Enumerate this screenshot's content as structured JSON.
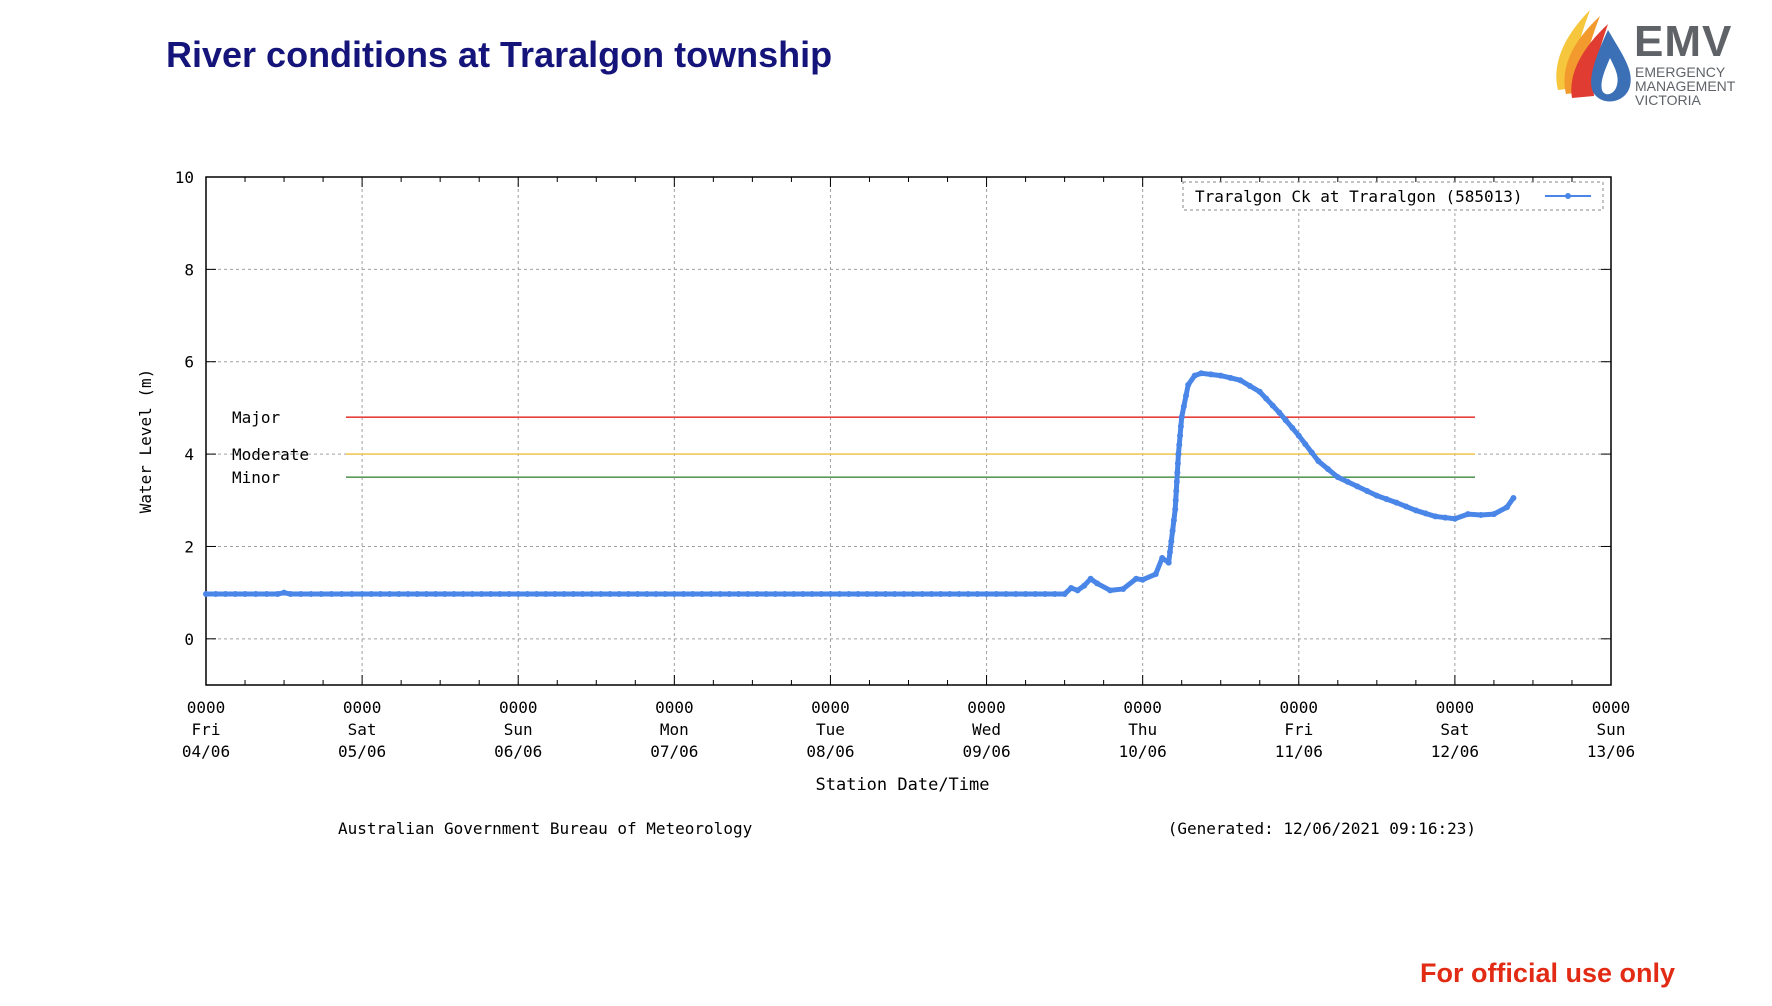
{
  "slide": {
    "title": "River conditions at Traralgon township",
    "footer": "For official use only"
  },
  "logo": {
    "wordmark": "EMV",
    "lines": [
      "EMERGENCY",
      "MANAGEMENT",
      "VICTORIA"
    ],
    "colors": {
      "drop": "#3b6fb6",
      "red": "#e03c31",
      "orange": "#f29a2e",
      "yellow": "#f6c63c",
      "text": "#5f6368"
    }
  },
  "chart_data": {
    "type": "line",
    "title": "",
    "xlabel": "Station Date/Time",
    "ylabel": "Water Level (m)",
    "ylim": [
      -1,
      10
    ],
    "yticks": [
      0,
      2,
      4,
      6,
      8,
      10
    ],
    "xlim": [
      "2021-06-04 00:00",
      "2021-06-13 00:00"
    ],
    "xticks": [
      {
        "time": "0000",
        "day": "Fri",
        "date": "04/06"
      },
      {
        "time": "0000",
        "day": "Sat",
        "date": "05/06"
      },
      {
        "time": "0000",
        "day": "Sun",
        "date": "06/06"
      },
      {
        "time": "0000",
        "day": "Mon",
        "date": "07/06"
      },
      {
        "time": "0000",
        "day": "Tue",
        "date": "08/06"
      },
      {
        "time": "0000",
        "day": "Wed",
        "date": "09/06"
      },
      {
        "time": "0000",
        "day": "Thu",
        "date": "10/06"
      },
      {
        "time": "0000",
        "day": "Fri",
        "date": "11/06"
      },
      {
        "time": "0000",
        "day": "Sat",
        "date": "12/06"
      },
      {
        "time": "0000",
        "day": "Sun",
        "date": "13/06"
      }
    ],
    "grid": true,
    "legend_position": "top-right",
    "thresholds": [
      {
        "name": "Major",
        "value": 4.8,
        "color": "#e8413c"
      },
      {
        "name": "Moderate",
        "value": 4.0,
        "color": "#f0c85a"
      },
      {
        "name": "Minor",
        "value": 3.5,
        "color": "#5a9a5a"
      }
    ],
    "series": [
      {
        "name": "Traralgon Ck at Traralgon (585013)",
        "color": "#4a86e8",
        "points": [
          [
            "2021-06-04 00:00",
            0.97
          ],
          [
            "2021-06-04 06:00",
            0.97
          ],
          [
            "2021-06-04 11:00",
            0.97
          ],
          [
            "2021-06-04 12:00",
            1.0
          ],
          [
            "2021-06-04 13:00",
            0.97
          ],
          [
            "2021-06-05 00:00",
            0.97
          ],
          [
            "2021-06-06 00:00",
            0.97
          ],
          [
            "2021-06-07 00:00",
            0.97
          ],
          [
            "2021-06-08 00:00",
            0.97
          ],
          [
            "2021-06-09 00:00",
            0.97
          ],
          [
            "2021-06-09 12:00",
            0.97
          ],
          [
            "2021-06-09 13:00",
            1.1
          ],
          [
            "2021-06-09 14:00",
            1.05
          ],
          [
            "2021-06-09 15:00",
            1.15
          ],
          [
            "2021-06-09 16:00",
            1.3
          ],
          [
            "2021-06-09 17:00",
            1.2
          ],
          [
            "2021-06-09 19:00",
            1.05
          ],
          [
            "2021-06-09 21:00",
            1.08
          ],
          [
            "2021-06-09 23:00",
            1.3
          ],
          [
            "2021-06-10 00:00",
            1.28
          ],
          [
            "2021-06-10 02:00",
            1.4
          ],
          [
            "2021-06-10 03:00",
            1.75
          ],
          [
            "2021-06-10 04:00",
            1.65
          ],
          [
            "2021-06-10 05:00",
            2.8
          ],
          [
            "2021-06-10 05:30",
            4.0
          ],
          [
            "2021-06-10 06:00",
            4.8
          ],
          [
            "2021-06-10 07:00",
            5.5
          ],
          [
            "2021-06-10 08:00",
            5.7
          ],
          [
            "2021-06-10 09:00",
            5.75
          ],
          [
            "2021-06-10 12:00",
            5.7
          ],
          [
            "2021-06-10 15:00",
            5.6
          ],
          [
            "2021-06-10 18:00",
            5.35
          ],
          [
            "2021-06-10 21:00",
            4.9
          ],
          [
            "2021-06-11 00:00",
            4.4
          ],
          [
            "2021-06-11 03:00",
            3.85
          ],
          [
            "2021-06-11 06:00",
            3.5
          ],
          [
            "2021-06-11 09:00",
            3.3
          ],
          [
            "2021-06-11 12:00",
            3.1
          ],
          [
            "2021-06-11 15:00",
            2.95
          ],
          [
            "2021-06-11 18:00",
            2.78
          ],
          [
            "2021-06-11 21:00",
            2.65
          ],
          [
            "2021-06-12 00:00",
            2.6
          ],
          [
            "2021-06-12 02:00",
            2.7
          ],
          [
            "2021-06-12 04:00",
            2.68
          ],
          [
            "2021-06-12 06:00",
            2.7
          ],
          [
            "2021-06-12 08:00",
            2.85
          ],
          [
            "2021-06-12 09:00",
            3.05
          ]
        ]
      }
    ],
    "annotations": {
      "source": "Australian Government Bureau of Meteorology",
      "generated": "(Generated: 12/06/2021 09:16:23)"
    }
  }
}
